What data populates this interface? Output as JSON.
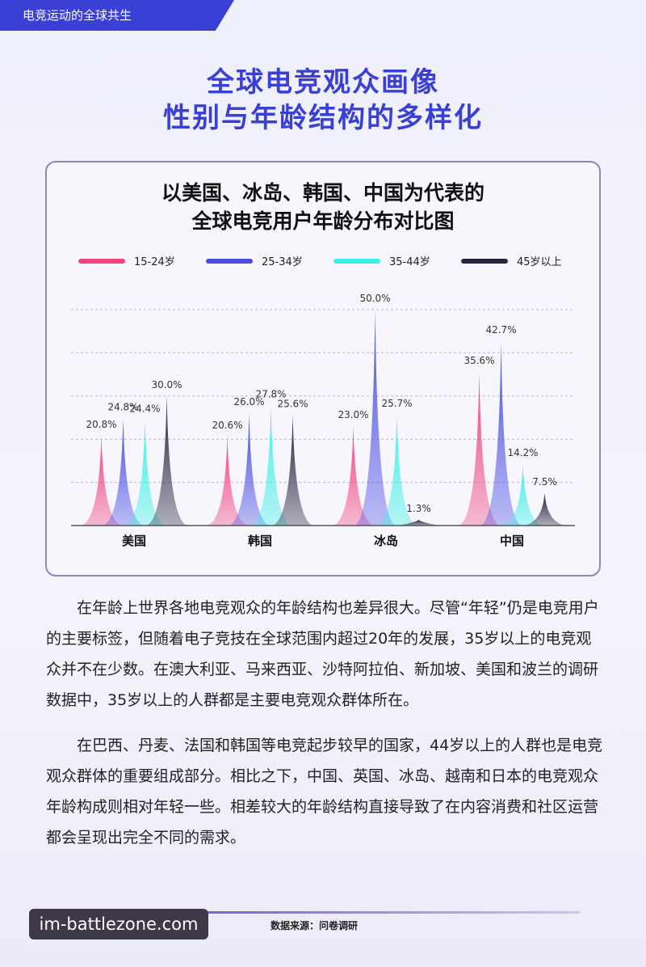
{
  "header": {
    "tag": "电竞运动的全球共生",
    "title": [
      "全球电竞观众画像",
      "性别与年龄结构的多样化"
    ]
  },
  "chart_data": {
    "type": "bar",
    "title": [
      "以美国、冰岛、韩国、中国为代表的",
      "全球电竞用户年龄分布对比图"
    ],
    "categories": [
      "美国",
      "韩国",
      "冰岛",
      "中国"
    ],
    "series": [
      {
        "name": "15-24岁",
        "color": "#f0457f",
        "values": [
          20.8,
          20.6,
          23.0,
          35.6
        ],
        "value_labels": [
          "20.8%",
          "20.6%",
          "23.0%",
          "35.6%"
        ]
      },
      {
        "name": "25-34岁",
        "color": "#4b4fe0",
        "values": [
          24.8,
          26.0,
          50.0,
          42.7
        ],
        "value_labels": [
          "24.8%",
          "26.0%",
          "50.0%",
          "42.7%"
        ]
      },
      {
        "name": "35-44岁",
        "color": "#3ff0e6",
        "values": [
          24.4,
          27.8,
          25.7,
          14.2
        ],
        "value_labels": [
          "24.4%",
          "27.8%",
          "25.7%",
          "14.2%"
        ]
      },
      {
        "name": "45岁以上",
        "color": "#26263f",
        "values": [
          30.0,
          25.6,
          1.3,
          7.5
        ],
        "value_labels": [
          "30.0%",
          "25.6%",
          "1.3%",
          "7.5%"
        ]
      }
    ],
    "ylim": [
      0,
      50
    ],
    "yticks": [
      10,
      20,
      30,
      40,
      50
    ],
    "grid": true
  },
  "paragraphs": [
    "在年龄上世界各地电竞观众的年龄结构也差异很大。尽管“年轻”仍是电竞用户的主要标签，但随着电子竞技在全球范围内超过20年的发展，35岁以上的电竞观众并不在少数。在澳大利亚、马来西亚、沙特阿拉伯、新加坡、美国和波兰的调研数据中，35岁以上的人群都是主要电竞观众群体所在。",
    "在巴西、丹麦、法国和韩国等电竞起步较早的国家，44岁以上的人群也是电竞观众群体的重要组成部分。相比之下，中国、英国、冰岛、越南和日本的电竞观众年龄构成则相对年轻一些。相差较大的年龄结构直接导致了在内容消费和社区运营都会呈现出完全不同的需求。"
  ],
  "source": "数据来源：问卷调研",
  "watermark": "im-battlezone.com"
}
